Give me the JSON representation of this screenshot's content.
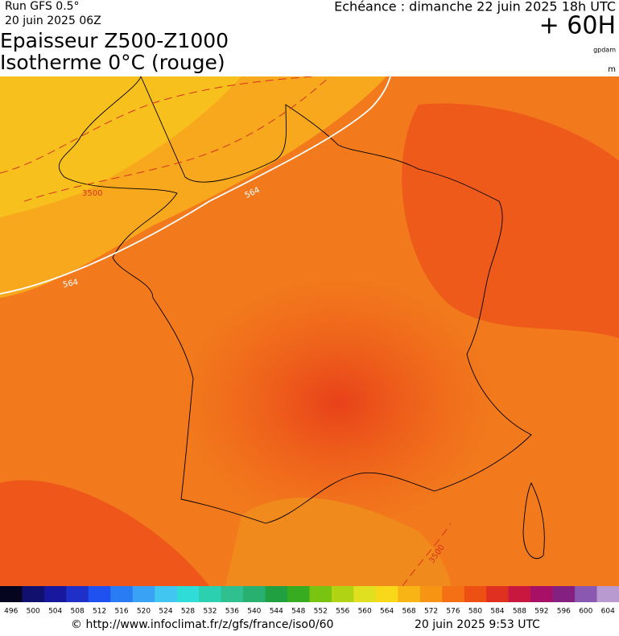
{
  "header": {
    "run": "Run GFS 0.5°",
    "date": "20 juin 2025 06Z",
    "title_line1": "Epaisseur Z500-Z1000",
    "title_line2": "Isotherme 0°C (rouge)",
    "valid": "Echéance : dimanche 22 juin 2025 18h UTC",
    "lead": "+ 60H",
    "unit_thickness": "gpdam",
    "unit_iso": "m"
  },
  "map": {
    "contour_labels": [
      "3500",
      "564",
      "564",
      "3500"
    ]
  },
  "legend": {
    "labels": [
      496,
      500,
      504,
      508,
      512,
      516,
      520,
      524,
      528,
      532,
      536,
      540,
      544,
      548,
      552,
      556,
      560,
      564,
      568,
      572,
      576,
      580,
      584,
      588,
      592,
      596,
      600,
      604
    ],
    "colors": [
      "#050520",
      "#10106e",
      "#18189e",
      "#1e30c8",
      "#1f50f0",
      "#2a7cf5",
      "#3aa2f5",
      "#40c6f0",
      "#30dcd8",
      "#2ad0b0",
      "#30c090",
      "#28b070",
      "#20a040",
      "#38ac20",
      "#78c410",
      "#b0d414",
      "#e0e020",
      "#f8d818",
      "#f8b414",
      "#f89414",
      "#f57014",
      "#ee5014",
      "#e03020",
      "#c81840",
      "#a81068",
      "#842080",
      "#8a58b0",
      "#b89ad0"
    ]
  },
  "footer": {
    "url": "© http://www.infoclimat.fr/z/gfs/france/iso0/60",
    "time": "20 juin 2025  9:53 UTC"
  }
}
